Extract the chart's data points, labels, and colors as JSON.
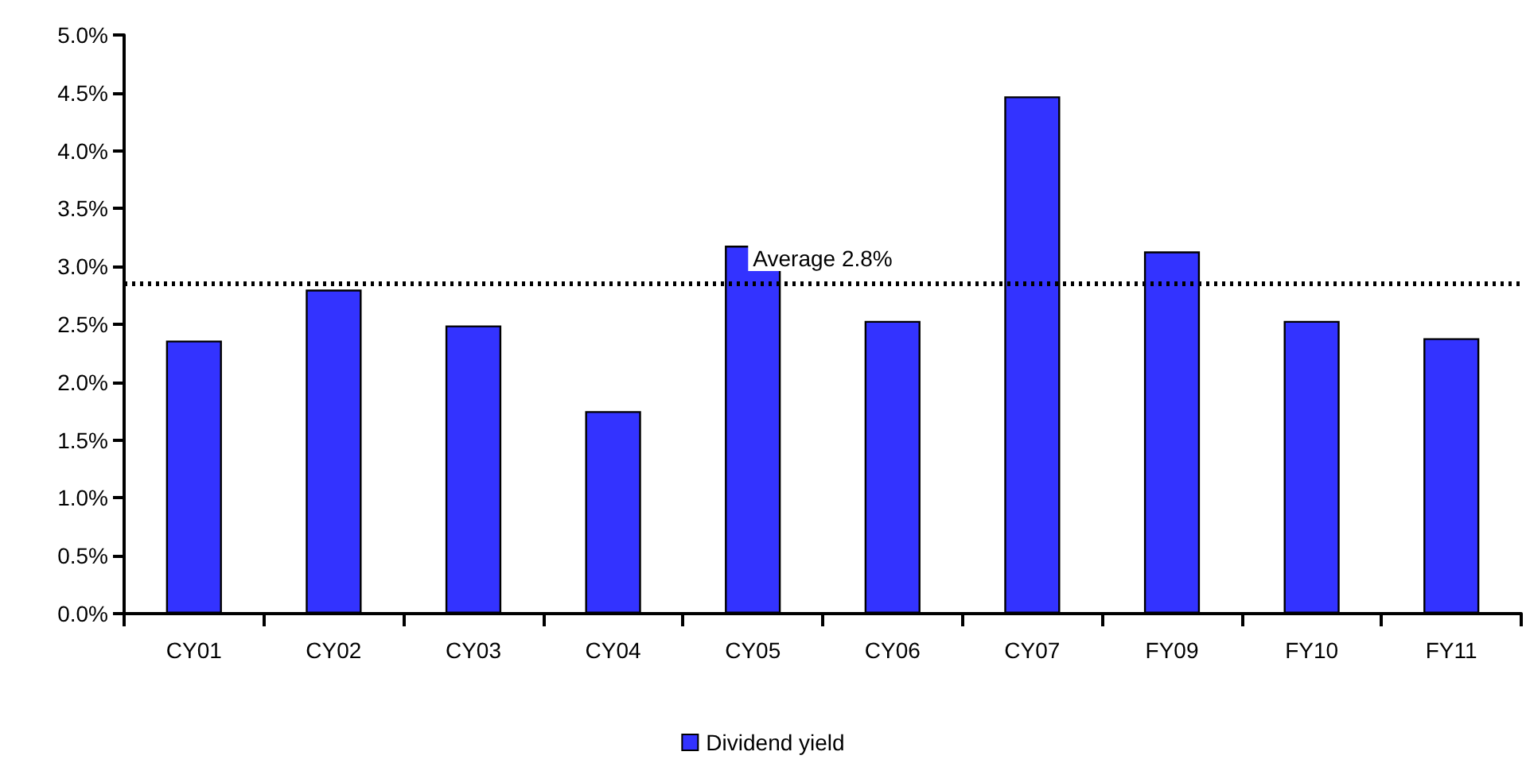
{
  "chart_data": {
    "type": "bar",
    "categories": [
      "CY01",
      "CY02",
      "CY03",
      "CY04",
      "CY05",
      "CY06",
      "CY07",
      "FY09",
      "FY10",
      "FY11"
    ],
    "series": [
      {
        "name": "Dividend yield",
        "color": "#3333ff",
        "values": [
          2.36,
          2.8,
          2.49,
          1.75,
          3.18,
          2.53,
          4.47,
          3.13,
          2.53,
          2.38
        ]
      }
    ],
    "ylim": [
      0,
      5
    ],
    "yticks": [
      {
        "value": 0,
        "label": "0.0%"
      },
      {
        "value": 0.5,
        "label": "0.5%"
      },
      {
        "value": 1,
        "label": "1.0%"
      },
      {
        "value": 1.5,
        "label": "1.5%"
      },
      {
        "value": 2,
        "label": "2.0%"
      },
      {
        "value": 2.5,
        "label": "2.5%"
      },
      {
        "value": 3,
        "label": "3.0%"
      },
      {
        "value": 3.5,
        "label": "3.5%"
      },
      {
        "value": 4,
        "label": "4.0%"
      },
      {
        "value": 4.5,
        "label": "4.5%"
      },
      {
        "value": 5,
        "label": "5.0%"
      }
    ],
    "ref_lines": [
      {
        "axis": "y",
        "value": 2.85,
        "label": "Average 2.8%",
        "color": "#000000",
        "line_style": "dotted"
      }
    ],
    "grid": false,
    "legend": "bottom"
  }
}
